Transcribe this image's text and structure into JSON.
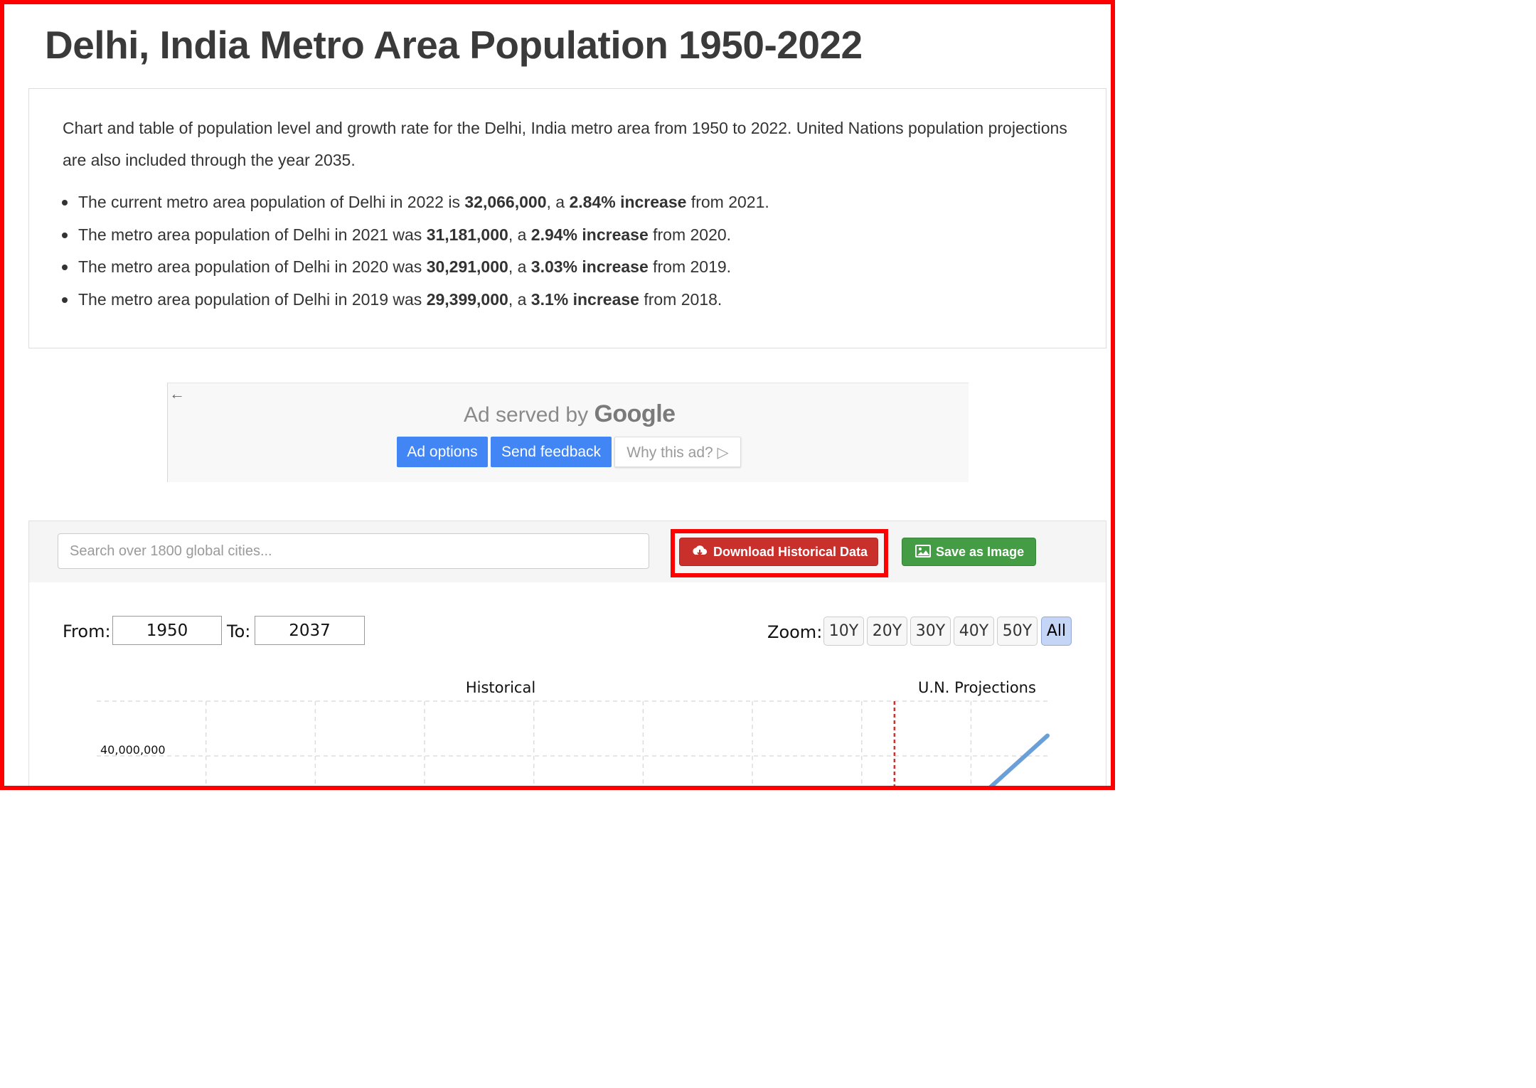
{
  "page": {
    "title": "Delhi, India Metro Area Population 1950-2022"
  },
  "intro": {
    "text": "Chart and table of population level and growth rate for the Delhi, India metro area from 1950 to 2022. United Nations population projections are also included through the year 2035.",
    "stats": [
      {
        "pre": "The current metro area population of Delhi in 2022 is ",
        "pop": "32,066,000",
        "mid": ", a ",
        "rate": "2.84% increase",
        "post": " from 2021."
      },
      {
        "pre": "The metro area population of Delhi in 2021 was ",
        "pop": "31,181,000",
        "mid": ", a ",
        "rate": "2.94% increase",
        "post": " from 2020."
      },
      {
        "pre": "The metro area population of Delhi in 2020 was ",
        "pop": "30,291,000",
        "mid": ", a ",
        "rate": "3.03% increase",
        "post": " from 2019."
      },
      {
        "pre": "The metro area population of Delhi in 2019 was ",
        "pop": "29,399,000",
        "mid": ", a ",
        "rate": "3.1% increase",
        "post": " from 2018."
      }
    ]
  },
  "ad": {
    "back_icon": "←",
    "served_by": "Ad served by ",
    "google": "Google",
    "options_label": "Ad options",
    "feedback_label": "Send feedback",
    "why_label": "Why this ad?",
    "why_icon": "▷"
  },
  "toolbar": {
    "search_placeholder": "Search over 1800 global cities...",
    "download_label": "Download Historical Data",
    "save_label": "Save as Image"
  },
  "range": {
    "from_label": "From:",
    "from_value": "1950",
    "to_label": "To:",
    "to_value": "2037",
    "zoom_label": "Zoom:",
    "zoom_options": [
      "10Y",
      "20Y",
      "30Y",
      "40Y",
      "50Y",
      "All"
    ],
    "zoom_selected": "All"
  },
  "colors": {
    "accent_red": "#c9302c",
    "accent_green": "#449d44",
    "highlight": "#ff0000",
    "series_line": "#6b9fd8",
    "projection_divider": "#d0312d"
  },
  "chart_data": {
    "type": "line",
    "xlim": [
      1950,
      2037
    ],
    "section_labels": [
      "Historical",
      "U.N. Projections"
    ],
    "projection_start": 2023,
    "y_ticks": [
      40000000
    ],
    "y_tick_labels": [
      "40,000,000"
    ],
    "series": [
      {
        "x": [
          2029,
          2037
        ],
        "y": [
          34500000,
          41900000
        ]
      }
    ]
  }
}
